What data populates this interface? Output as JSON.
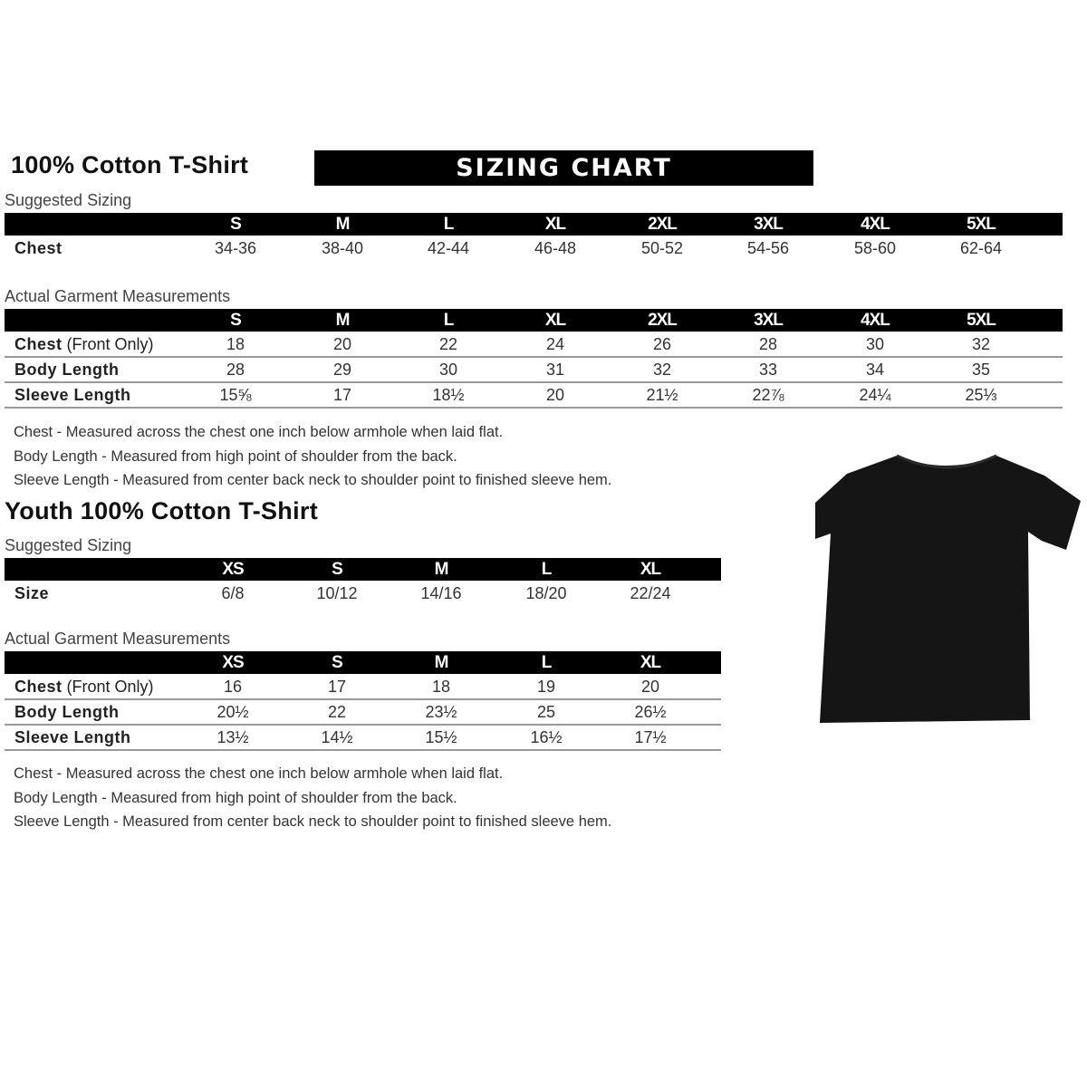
{
  "adult": {
    "title": "100% Cotton T-Shirt",
    "banner": "SIZING CHART",
    "suggested_label": "Suggested Sizing",
    "sizes": [
      "S",
      "M",
      "L",
      "XL",
      "2XL",
      "3XL",
      "4XL",
      "5XL"
    ],
    "suggested_rows": [
      {
        "label": "Chest",
        "values": [
          "34-36",
          "38-40",
          "42-44",
          "46-48",
          "50-52",
          "54-56",
          "58-60",
          "62-64"
        ]
      }
    ],
    "actual_label": "Actual Garment Measurements",
    "actual_rows": [
      {
        "label": "Chest",
        "label_suffix": " (Front Only)",
        "values": [
          "18",
          "20",
          "22",
          "24",
          "26",
          "28",
          "30",
          "32"
        ]
      },
      {
        "label": "Body Length",
        "label_suffix": "",
        "values": [
          "28",
          "29",
          "30",
          "31",
          "32",
          "33",
          "34",
          "35"
        ]
      },
      {
        "label": "Sleeve Length",
        "label_suffix": "",
        "values": [
          "15⅝",
          "17",
          "18½",
          "20",
          "21½",
          "22⅞",
          "24¼",
          "25⅓"
        ]
      }
    ],
    "notes": [
      "Chest - Measured across the chest one inch below armhole when laid flat.",
      "Body Length - Measured from high point of shoulder from the back.",
      "Sleeve Length - Measured from center back neck to shoulder point to finished sleeve hem."
    ]
  },
  "youth": {
    "title": "Youth 100% Cotton T-Shirt",
    "suggested_label": "Suggested Sizing",
    "sizes": [
      "XS",
      "S",
      "M",
      "L",
      "XL"
    ],
    "suggested_rows": [
      {
        "label": "Size",
        "values": [
          "6/8",
          "10/12",
          "14/16",
          "18/20",
          "22/24"
        ]
      }
    ],
    "actual_label": "Actual Garment Measurements",
    "actual_rows": [
      {
        "label": "Chest",
        "label_suffix": " (Front Only)",
        "values": [
          "16",
          "17",
          "18",
          "19",
          "20"
        ]
      },
      {
        "label": "Body Length",
        "label_suffix": "",
        "values": [
          "20½",
          "22",
          "23½",
          "25",
          "26½"
        ]
      },
      {
        "label": "Sleeve Length",
        "label_suffix": "",
        "values": [
          "13½",
          "14½",
          "15½",
          "16½",
          "17½"
        ]
      }
    ],
    "notes": [
      "Chest - Measured across the chest one inch below armhole when laid flat.",
      "Body Length - Measured from high point of shoulder from the back.",
      "Sleeve Length - Measured from center back neck to shoulder point to finished sleeve hem."
    ]
  },
  "product_image": {
    "icon": "black-tshirt",
    "color": "#151515"
  }
}
